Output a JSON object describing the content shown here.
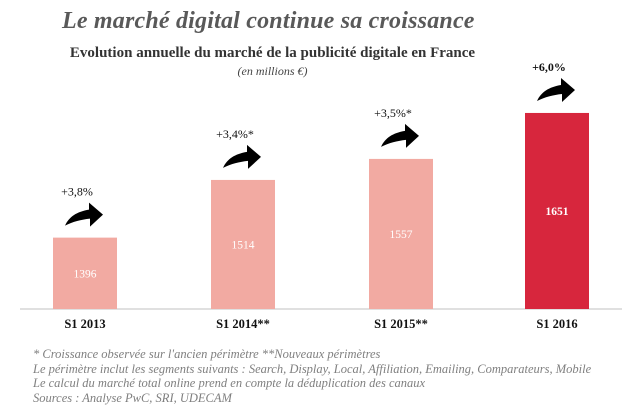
{
  "title": "Le marché digital continue sa croissance",
  "subtitle": "Evolution annuelle du marché de la publicité digitale en France",
  "unit": "(en millions €)",
  "colors": {
    "bar_light": "#f2aaa2",
    "bar_highlight": "#d7263d",
    "axis": "#c0c0c0",
    "arrow": "#000000",
    "label_dark": "#ffffff",
    "label_light": "#ffffff"
  },
  "chart_data": {
    "type": "bar",
    "title": "Evolution annuelle du marché de la publicité digitale en France",
    "ylabel": "(en millions €)",
    "xlabel": "",
    "categories": [
      "S1 2013",
      "S1 2014**",
      "S1 2015**",
      "S1 2016"
    ],
    "values": [
      1396,
      1514,
      1557,
      1651
    ],
    "growth_labels": [
      "+3,8%",
      "+3,4%*",
      "+3,5%*",
      "+6,0%"
    ],
    "highlight_index": 3,
    "ylim": [
      1250,
      1700
    ],
    "grid": false
  },
  "notes": [
    "* Croissance observée  sur l'ancien périmètre **Nouveaux périmètres",
    "Le périmètre inclut les segments suivants : Search, Display, Local, Affiliation, Emailing, Comparateurs, Mobile",
    "Le calcul du marché total online prend en compte la déduplication des canaux",
    "Sources : Analyse PwC, SRI, UDECAM"
  ]
}
